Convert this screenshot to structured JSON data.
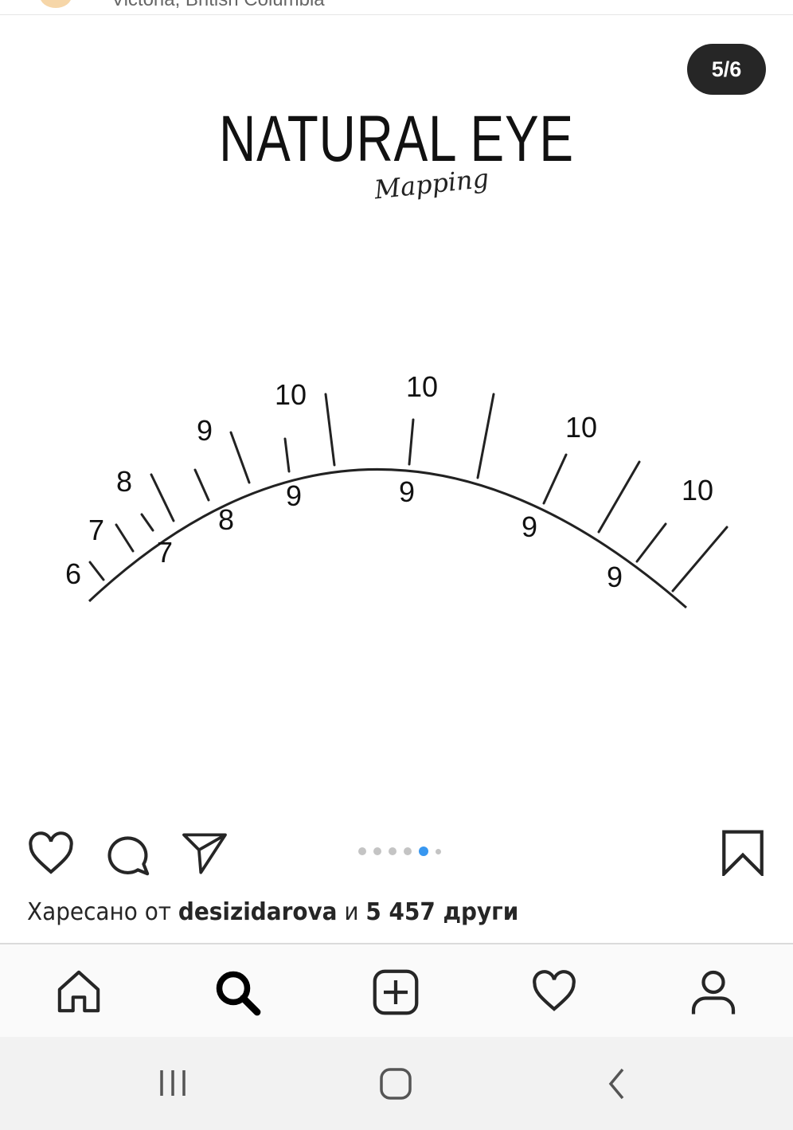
{
  "header": {
    "location": "Victoria, British Columbia"
  },
  "post": {
    "counter": "5/6",
    "image": {
      "title": "NATURAL EYE",
      "subtitle": "Mapping",
      "lengths": [
        "6",
        "7",
        "7",
        "8",
        "8",
        "9",
        "9",
        "10",
        "9",
        "10",
        "10",
        "9",
        "9",
        "10"
      ]
    },
    "carousel": {
      "count": 6,
      "active_index": 4
    }
  },
  "likes": {
    "prefix": "Харесано от",
    "user": "desizidarova",
    "middle": "и",
    "count": "5 457 други"
  },
  "bottom_nav": [
    "home-icon",
    "search-icon",
    "new-post-icon",
    "activity-heart-icon",
    "profile-icon"
  ],
  "system_nav": [
    "recents-icon",
    "home-icon",
    "back-icon"
  ],
  "colors": {
    "accent": "#3897f0",
    "counter_bg": "#262626"
  }
}
